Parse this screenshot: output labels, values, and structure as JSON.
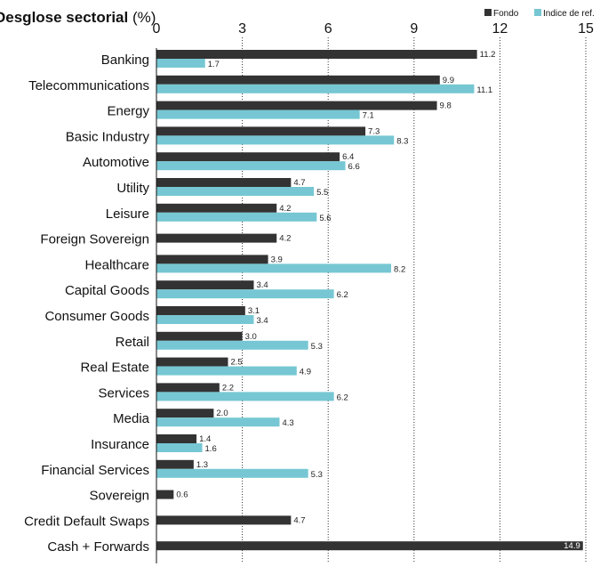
{
  "chart_data": {
    "type": "bar",
    "orientation": "horizontal",
    "title": "Desglose sectorial",
    "title_unit": "(%)",
    "xlim": [
      0,
      15
    ],
    "xticks": [
      0,
      3,
      6,
      9,
      12,
      15
    ],
    "grid": "vertical dotted",
    "legend_position": "top-right",
    "categories": [
      "Banking",
      "Telecommunications",
      "Energy",
      "Basic Industry",
      "Automotive",
      "Utility",
      "Leisure",
      "Foreign Sovereign",
      "Healthcare",
      "Capital Goods",
      "Consumer Goods",
      "Retail",
      "Real Estate",
      "Services",
      "Media",
      "Insurance",
      "Financial Services",
      "Sovereign",
      "Credit Default Swaps",
      "Cash + Forwards"
    ],
    "series": [
      {
        "name": "Fondo",
        "color": "#333333",
        "values": [
          11.2,
          9.9,
          9.8,
          7.3,
          6.4,
          4.7,
          4.2,
          4.2,
          3.9,
          3.4,
          3.1,
          3.0,
          2.5,
          2.2,
          2.0,
          1.4,
          1.3,
          0.6,
          4.7,
          14.9
        ],
        "labels": [
          "11.2",
          "9.9",
          "9.8",
          "7.3",
          "6.4",
          "4.7",
          "4.2",
          "4.2",
          "3.9",
          "3.4",
          "3.1",
          "3.0",
          "2.5",
          "2.2",
          "2.0",
          "1.4",
          "1.3",
          "0.6",
          "4.7",
          "14.9"
        ]
      },
      {
        "name": "Indice de ref.",
        "color": "#76c7d3",
        "values": [
          1.7,
          11.1,
          7.1,
          8.3,
          6.6,
          5.5,
          5.6,
          null,
          8.2,
          6.2,
          3.4,
          5.3,
          4.9,
          6.2,
          4.3,
          1.6,
          5.3,
          null,
          null,
          null
        ],
        "labels": [
          "1.7",
          "11.1",
          "7.1",
          "8.3",
          "6.6",
          "5.5",
          "5.6",
          null,
          "8.2",
          "6.2",
          "3.4",
          "5.3",
          "4.9",
          "6.2",
          "4.3",
          "1.6",
          "5.3",
          null,
          null,
          null
        ]
      }
    ]
  }
}
